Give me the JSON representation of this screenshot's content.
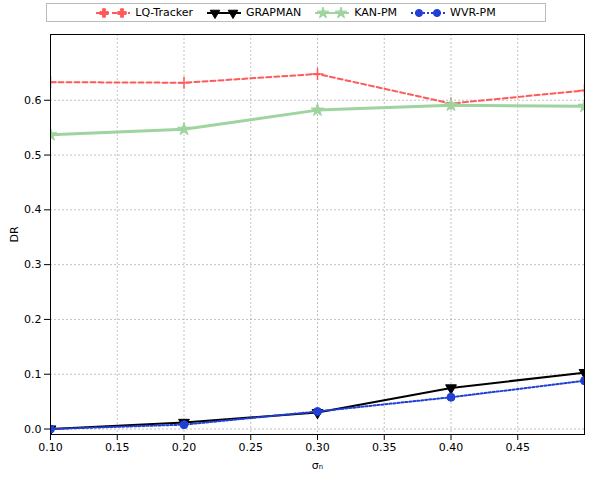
{
  "chart_data": {
    "type": "line",
    "x_label": "σₙ",
    "y_label": "DR",
    "x": [
      0.1,
      0.2,
      0.3,
      0.4,
      0.5
    ],
    "series": [
      {
        "name": "LQ-Tracker",
        "color": "#ff5a5a",
        "marker": "plus",
        "line_style": "dashed",
        "values": [
          0.633,
          0.632,
          0.648,
          0.594,
          0.618
        ]
      },
      {
        "name": "GRAPMAN",
        "color": "#000000",
        "marker": "triangle_down",
        "line_style": "solid",
        "values": [
          0.0,
          0.012,
          0.03,
          0.075,
          0.103
        ]
      },
      {
        "name": "KAN-PM",
        "color": "#9fd49f",
        "marker": "star",
        "line_style": "solid",
        "values": [
          0.537,
          0.547,
          0.582,
          0.591,
          0.589
        ]
      },
      {
        "name": "WVR-PM",
        "color": "#1f3fd6",
        "marker": "circle",
        "line_style": "dotted",
        "values": [
          0.0,
          0.008,
          0.032,
          0.058,
          0.088
        ]
      }
    ],
    "xlim": [
      0.1,
      0.5
    ],
    "xticks": [
      {
        "value": 0.1,
        "label": "0.10"
      },
      {
        "value": 0.15,
        "label": "0.15"
      },
      {
        "value": 0.2,
        "label": "0.20"
      },
      {
        "value": 0.25,
        "label": "0.25"
      },
      {
        "value": 0.3,
        "label": "0.30"
      },
      {
        "value": 0.35,
        "label": "0.35"
      },
      {
        "value": 0.4,
        "label": "0.40"
      },
      {
        "value": 0.45,
        "label": "0.45"
      }
    ],
    "ylim": [
      -0.01,
      0.72
    ],
    "yticks": [
      {
        "value": 0,
        "label": "0.0"
      },
      0.1,
      0.2,
      0.3,
      0.4,
      0.5,
      0.6
    ],
    "grid": true,
    "legend": "top"
  }
}
